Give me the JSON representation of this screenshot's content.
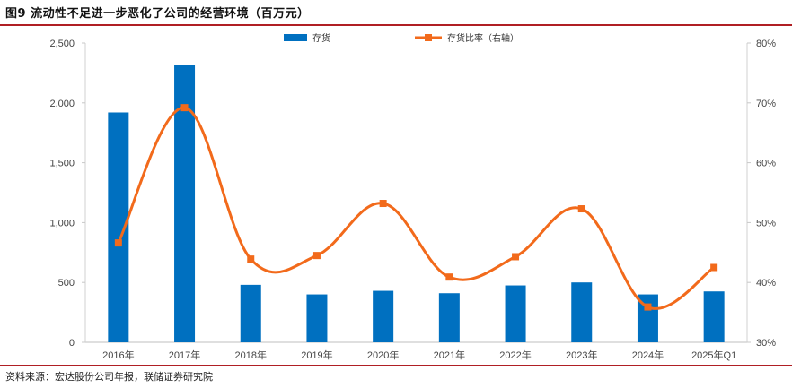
{
  "title": "图9  流动性不足进一步恶化了公司的经营环境（百万元）",
  "source": "资料来源：宏达股份公司年报，联储证券研究院",
  "chart_data": {
    "type": "bar",
    "categories": [
      "2016年",
      "2017年",
      "2018年",
      "2019年",
      "2020年",
      "2021年",
      "2022年",
      "2023年",
      "2024年",
      "2025年Q1"
    ],
    "series": [
      {
        "name": "存货",
        "type": "bar",
        "axis": "left",
        "color": "#0070c0",
        "values": [
          1920,
          2320,
          480,
          400,
          430,
          410,
          475,
          500,
          400,
          425
        ]
      },
      {
        "name": "存货比率（右轴）",
        "type": "line",
        "axis": "right",
        "color": "#f26a1b",
        "values": [
          46.6,
          69.2,
          43.9,
          44.5,
          53.2,
          40.9,
          44.3,
          52.3,
          35.9,
          42.5
        ]
      }
    ],
    "y_left": {
      "min": 0,
      "max": 2500,
      "step": 500,
      "tick_labels": [
        "0",
        "500",
        "1,000",
        "1,500",
        "2,000",
        "2,500"
      ]
    },
    "y_right": {
      "min": 30,
      "max": 80,
      "step": 10,
      "tick_labels": [
        "30%",
        "40%",
        "50%",
        "60%",
        "70%",
        "80%"
      ]
    },
    "grid": false,
    "legend": "top-center"
  }
}
